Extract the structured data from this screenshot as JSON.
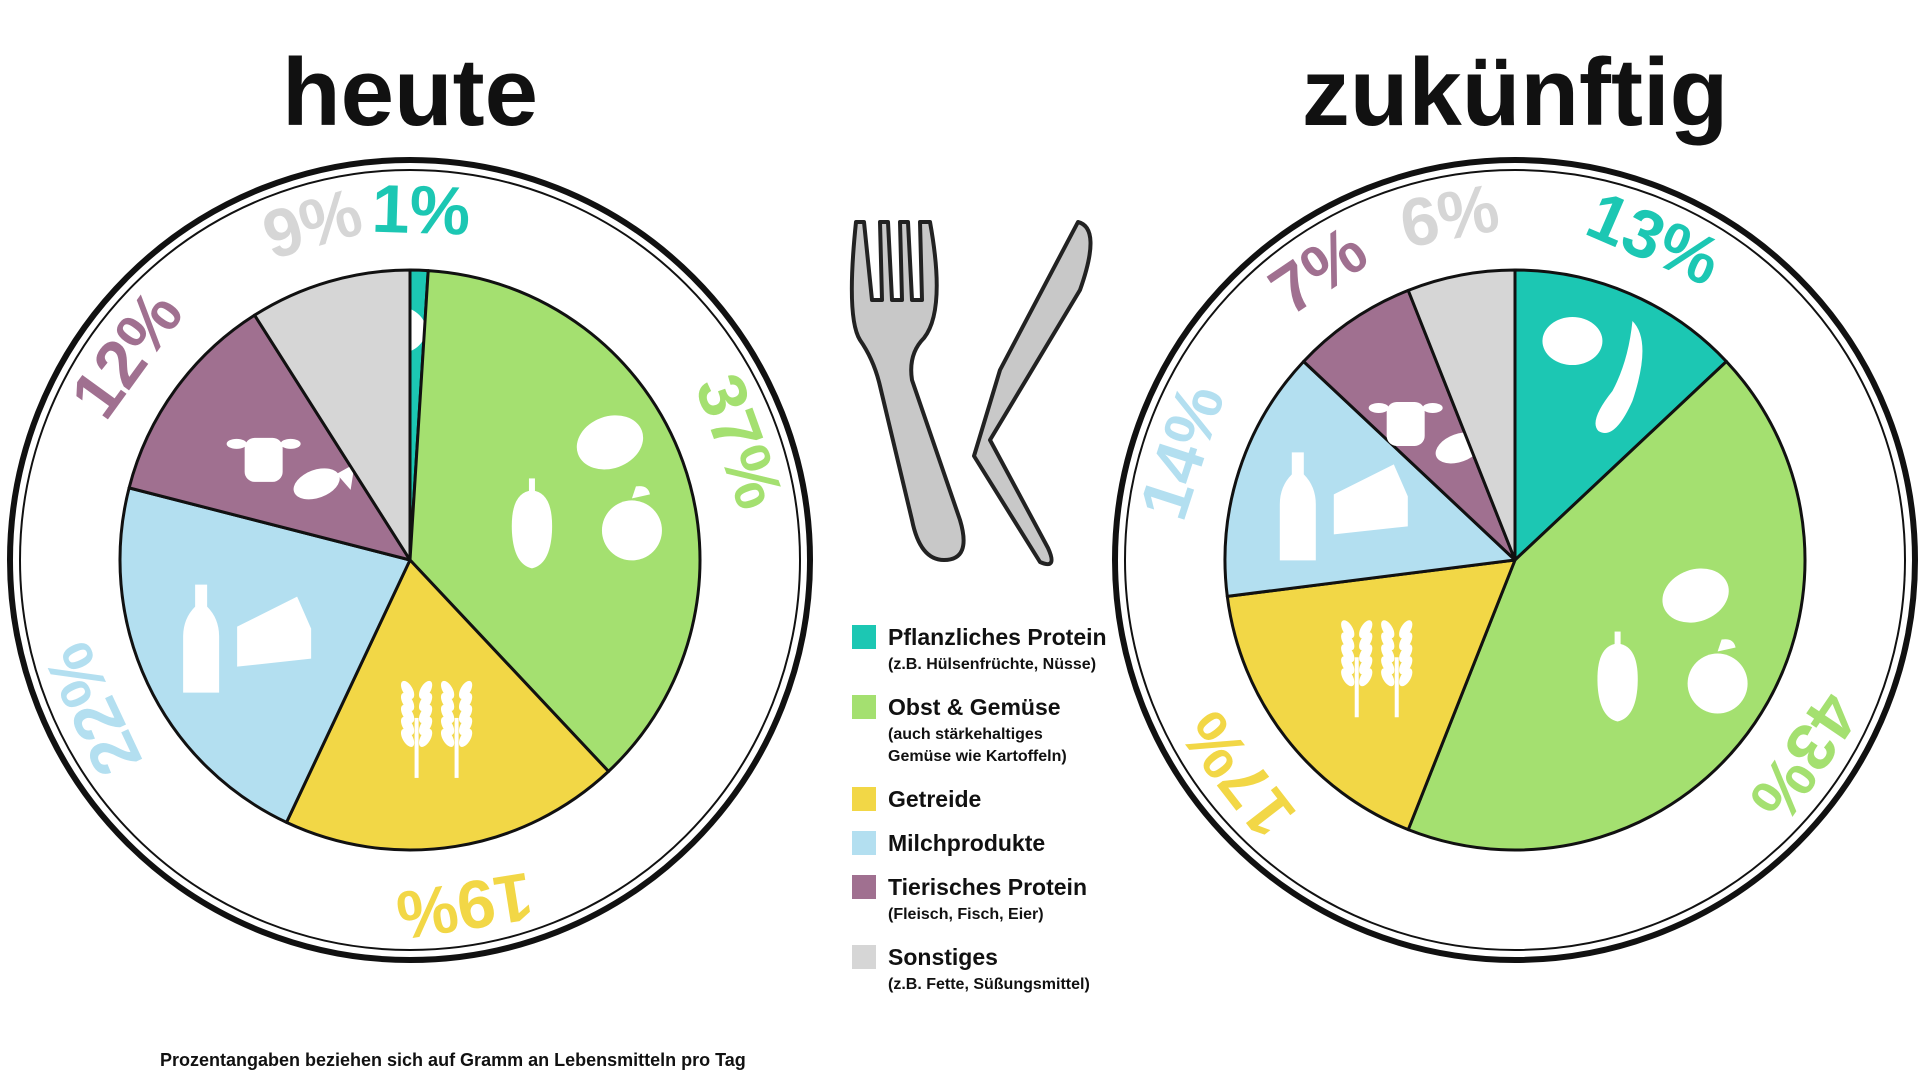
{
  "chart_data": [
    {
      "type": "pie",
      "title": "heute",
      "categories": [
        "Pflanzliches Protein",
        "Obst & Gemüse",
        "Getreide",
        "Milchprodukte",
        "Tierisches Protein",
        "Sonstiges"
      ],
      "values": [
        1,
        37,
        19,
        22,
        12,
        9
      ],
      "labels": [
        "1%",
        "37%",
        "19%",
        "22%",
        "12%",
        "9%"
      ]
    },
    {
      "type": "pie",
      "title": "zukünftig",
      "categories": [
        "Pflanzliches Protein",
        "Obst & Gemüse",
        "Getreide",
        "Milchprodukte",
        "Tierisches Protein",
        "Sonstiges"
      ],
      "values": [
        13,
        43,
        17,
        14,
        7,
        6
      ],
      "labels": [
        "13%",
        "43%",
        "17%",
        "14%",
        "7%",
        "6%"
      ]
    }
  ],
  "colors": {
    "Pflanzliches Protein": "#1cc7b3",
    "Obst & Gemüse": "#a4e070",
    "Getreide": "#f2d746",
    "Milchprodukte": "#b3dff0",
    "Tierisches Protein": "#a07090",
    "Sonstiges": "#d6d6d6"
  },
  "legend": [
    {
      "name": "Pflanzliches Protein",
      "note": [
        "(z.B. Hülsenfrüchte, Nüsse)"
      ]
    },
    {
      "name": "Obst & Gemüse",
      "note": [
        "(auch stärkehaltiges",
        "Gemüse wie Kartoffeln)"
      ]
    },
    {
      "name": "Getreide",
      "note": []
    },
    {
      "name": "Milchprodukte",
      "note": []
    },
    {
      "name": "Tierisches Protein",
      "note": [
        "(Fleisch, Fisch, Eier)"
      ]
    },
    {
      "name": "Sonstiges",
      "note": [
        "(z.B. Fette, Süßungsmittel)"
      ]
    }
  ],
  "footnote": "Prozentangaben beziehen sich auf Gramm an Lebensmitteln pro Tag",
  "icons": [
    "fork-icon",
    "knife-icon",
    "cow-icon",
    "fish-icon",
    "potato-icon",
    "pepper-icon",
    "apple-icon",
    "wheat-icon",
    "milk-bottle-icon",
    "cheese-icon",
    "walnut-icon",
    "pea-pod-icon"
  ]
}
